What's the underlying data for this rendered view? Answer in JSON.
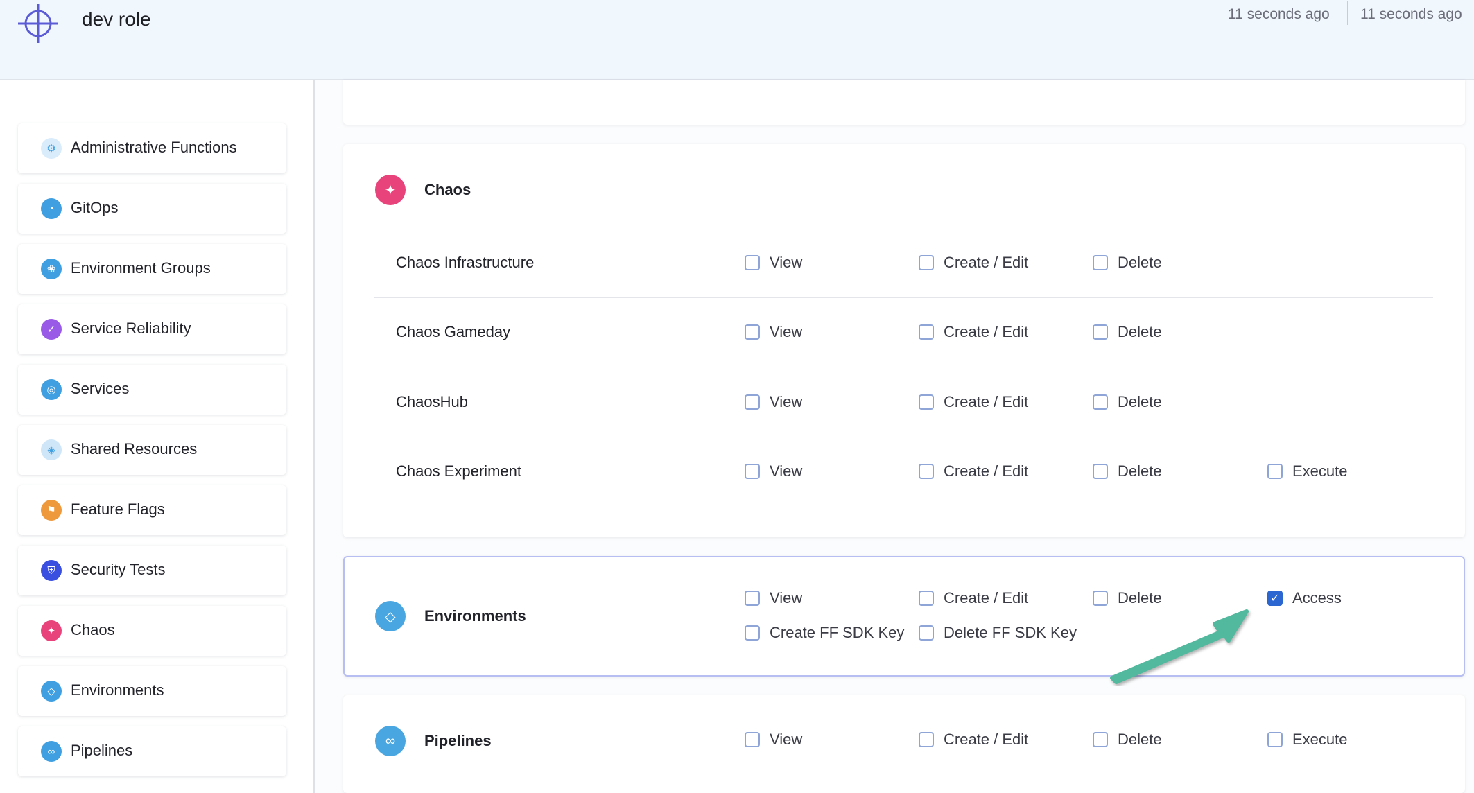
{
  "header": {
    "title": "dev role",
    "timestamps": [
      "11 seconds ago",
      "11 seconds ago"
    ]
  },
  "sidebar": {
    "items": [
      {
        "label": "Administrative Functions",
        "icon": "gear-icon",
        "color": "#d9ecfb",
        "glyph": "⚙"
      },
      {
        "label": "GitOps",
        "icon": "gitops-icon",
        "color": "#3f9fe0",
        "glyph": "◔"
      },
      {
        "label": "Environment Groups",
        "icon": "environment-groups-icon",
        "color": "#3f9fe0",
        "glyph": "❀"
      },
      {
        "label": "Service Reliability",
        "icon": "service-reliability-icon",
        "color": "#9a5ae8",
        "glyph": "✓"
      },
      {
        "label": "Services",
        "icon": "services-icon",
        "color": "#3f9fe0",
        "glyph": "◎"
      },
      {
        "label": "Shared Resources",
        "icon": "shared-resources-icon",
        "color": "#cfe6f8",
        "glyph": "◈"
      },
      {
        "label": "Feature Flags",
        "icon": "feature-flags-icon",
        "color": "#ee9a3c",
        "glyph": "⚑"
      },
      {
        "label": "Security Tests",
        "icon": "shield-icon",
        "color": "#3a4fe0",
        "glyph": "⛨"
      },
      {
        "label": "Chaos",
        "icon": "chaos-icon",
        "color": "#e8437a",
        "glyph": "✦"
      },
      {
        "label": "Environments",
        "icon": "environments-icon",
        "color": "#3f9fe0",
        "glyph": "◇"
      },
      {
        "label": "Pipelines",
        "icon": "pipelines-icon",
        "color": "#3f9fe0",
        "glyph": "∞"
      }
    ]
  },
  "chaos": {
    "title": "Chaos",
    "rows": [
      {
        "label": "Chaos Infrastructure",
        "perms": [
          {
            "label": "View",
            "checked": false
          },
          {
            "label": "Create / Edit",
            "checked": false
          },
          {
            "label": "Delete",
            "checked": false
          }
        ]
      },
      {
        "label": "Chaos Gameday",
        "perms": [
          {
            "label": "View",
            "checked": false
          },
          {
            "label": "Create / Edit",
            "checked": false
          },
          {
            "label": "Delete",
            "checked": false
          }
        ]
      },
      {
        "label": "ChaosHub",
        "perms": [
          {
            "label": "View",
            "checked": false
          },
          {
            "label": "Create / Edit",
            "checked": false
          },
          {
            "label": "Delete",
            "checked": false
          }
        ]
      },
      {
        "label": "Chaos Experiment",
        "perms": [
          {
            "label": "View",
            "checked": false
          },
          {
            "label": "Create / Edit",
            "checked": false
          },
          {
            "label": "Delete",
            "checked": false
          },
          {
            "label": "Execute",
            "checked": false
          }
        ]
      }
    ]
  },
  "environments": {
    "title": "Environments",
    "perms": [
      {
        "label": "View",
        "checked": false
      },
      {
        "label": "Create / Edit",
        "checked": false
      },
      {
        "label": "Delete",
        "checked": false
      },
      {
        "label": "Access",
        "checked": true
      }
    ],
    "perms2": [
      {
        "label": "Create FF SDK Key",
        "checked": false
      },
      {
        "label": "Delete FF SDK Key",
        "checked": false
      }
    ]
  },
  "pipelines": {
    "title": "Pipelines",
    "perms": [
      {
        "label": "View",
        "checked": false
      },
      {
        "label": "Create / Edit",
        "checked": false
      },
      {
        "label": "Delete",
        "checked": false
      },
      {
        "label": "Execute",
        "checked": false
      }
    ]
  },
  "colors": {
    "accent": "#2c66d0",
    "arrow": "#52b89e",
    "logo": "#5b5bd6"
  }
}
